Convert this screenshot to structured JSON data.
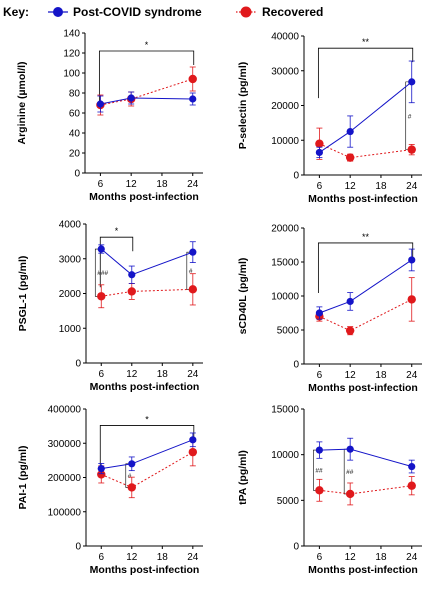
{
  "legend": {
    "key_label": "Key:",
    "series": [
      {
        "name": "Post-COVID syndrome",
        "color": "#1414c8",
        "marker": "filled-circle",
        "line": "solid"
      },
      {
        "name": "Recovered",
        "color": "#e0191c",
        "marker": "filled-circle",
        "line": "dotted"
      }
    ]
  },
  "chart_data": [
    {
      "type": "line",
      "ylabel": "Arginine (µmol/l)",
      "xlabel": "Months post-infection",
      "x": [
        6,
        12,
        24
      ],
      "x_ticks": [
        "6",
        "12",
        "18",
        "24"
      ],
      "x_range": [
        3,
        26
      ],
      "ylim": [
        0,
        140
      ],
      "y_ticks": [
        "0",
        "20",
        "40",
        "60",
        "80",
        "100",
        "120",
        "140"
      ],
      "series": [
        {
          "name": "Post-COVID syndrome",
          "values": [
            69,
            75,
            74
          ],
          "errors": [
            8,
            6,
            6
          ]
        },
        {
          "name": "Recovered",
          "values": [
            68,
            74,
            94
          ],
          "errors": [
            10,
            7,
            12
          ]
        }
      ],
      "annotations": [
        {
          "type": "bracket",
          "from_x": 6,
          "to_x": 24,
          "y": 122,
          "label": "*"
        }
      ]
    },
    {
      "type": "line",
      "ylabel": "P-selectin (pg/ml)",
      "xlabel": "Months post-infection",
      "x": [
        6,
        12,
        24
      ],
      "x_ticks": [
        "6",
        "12",
        "18",
        "24"
      ],
      "x_range": [
        3,
        26
      ],
      "ylim": [
        0,
        40000
      ],
      "y_ticks": [
        "0",
        "10000",
        "20000",
        "30000",
        "40000"
      ],
      "series": [
        {
          "name": "Post-COVID syndrome",
          "values": [
            6500,
            12500,
            26800
          ],
          "errors": [
            1500,
            4500,
            6000
          ]
        },
        {
          "name": "Recovered",
          "values": [
            9000,
            5000,
            7300
          ],
          "errors": [
            4500,
            1000,
            1500
          ]
        }
      ],
      "annotations": [
        {
          "type": "bracket",
          "from_x": 6,
          "to_x": 24,
          "y": 36500,
          "label": "**"
        },
        {
          "type": "vbar",
          "x": 24,
          "y_from": 7300,
          "y_to": 26800,
          "label": "#"
        }
      ]
    },
    {
      "type": "line",
      "ylabel": "PSGL-1 (pg/ml)",
      "xlabel": "Months post-infection",
      "x": [
        6,
        12,
        24
      ],
      "x_ticks": [
        "6",
        "12",
        "18",
        "24"
      ],
      "x_range": [
        3,
        26
      ],
      "ylim": [
        0,
        4000
      ],
      "y_ticks": [
        "0",
        "1000",
        "2000",
        "3000",
        "4000"
      ],
      "series": [
        {
          "name": "Post-COVID syndrome",
          "values": [
            3280,
            2540,
            3190
          ],
          "errors": [
            120,
            250,
            300
          ]
        },
        {
          "name": "Recovered",
          "values": [
            1920,
            2060,
            2120
          ],
          "errors": [
            330,
            230,
            450
          ]
        }
      ],
      "annotations": [
        {
          "type": "bracket",
          "from_x": 6,
          "to_x": 12,
          "y": 3620,
          "label": "*"
        },
        {
          "type": "vbar",
          "x": 6,
          "y_from": 1920,
          "y_to": 3280,
          "label": "###"
        },
        {
          "type": "vbar",
          "x": 24,
          "y_from": 2120,
          "y_to": 3190,
          "label": "#"
        }
      ]
    },
    {
      "type": "line",
      "ylabel": "sCD40L (pg/ml)",
      "xlabel": "Months post-infection",
      "x": [
        6,
        12,
        24
      ],
      "x_ticks": [
        "6",
        "12",
        "18",
        "24"
      ],
      "x_range": [
        3,
        26
      ],
      "ylim": [
        0,
        20000
      ],
      "y_ticks": [
        "0",
        "5000",
        "10000",
        "15000",
        "20000"
      ],
      "series": [
        {
          "name": "Post-COVID syndrome",
          "values": [
            7500,
            9200,
            15300
          ],
          "errors": [
            900,
            1300,
            1600
          ]
        },
        {
          "name": "Recovered",
          "values": [
            7000,
            4900,
            9500
          ],
          "errors": [
            700,
            600,
            3200
          ]
        }
      ],
      "annotations": [
        {
          "type": "bracket",
          "from_x": 6,
          "to_x": 24,
          "y": 17800,
          "label": "**"
        }
      ]
    },
    {
      "type": "line",
      "ylabel": "PAI-1 (pg/ml)",
      "xlabel": "Months post-infection",
      "x": [
        6,
        12,
        24
      ],
      "x_ticks": [
        "6",
        "12",
        "18",
        "24"
      ],
      "x_range": [
        3,
        26
      ],
      "ylim": [
        0,
        400000
      ],
      "y_ticks": [
        "0",
        "100000",
        "200000",
        "300000",
        "400000"
      ],
      "series": [
        {
          "name": "Post-COVID syndrome",
          "values": [
            226000,
            240000,
            310000
          ],
          "errors": [
            15000,
            20000,
            20000
          ]
        },
        {
          "name": "Recovered",
          "values": [
            209000,
            171000,
            274000
          ],
          "errors": [
            25000,
            30000,
            40000
          ]
        }
      ],
      "annotations": [
        {
          "type": "bracket",
          "from_x": 6,
          "to_x": 24,
          "y": 352000,
          "label": "*"
        },
        {
          "type": "vbar",
          "x": 12,
          "y_from": 171000,
          "y_to": 240000,
          "label": "#"
        }
      ]
    },
    {
      "type": "line",
      "ylabel": "tPA (pg/ml)",
      "xlabel": "Months post-infection",
      "x": [
        6,
        12,
        24
      ],
      "x_ticks": [
        "6",
        "12",
        "18",
        "24"
      ],
      "x_range": [
        3,
        26
      ],
      "ylim": [
        0,
        15000
      ],
      "y_ticks": [
        "0",
        "5000",
        "10000",
        "15000"
      ],
      "series": [
        {
          "name": "Post-COVID syndrome",
          "values": [
            10500,
            10600,
            8700
          ],
          "errors": [
            900,
            1200,
            700
          ]
        },
        {
          "name": "Recovered",
          "values": [
            6100,
            5700,
            6600
          ],
          "errors": [
            1200,
            1200,
            1000
          ]
        }
      ],
      "annotations": [
        {
          "type": "vbar",
          "x": 6,
          "y_from": 6100,
          "y_to": 10500,
          "label": "##"
        },
        {
          "type": "vbar",
          "x": 12,
          "y_from": 5700,
          "y_to": 10600,
          "label": "##"
        }
      ]
    }
  ]
}
